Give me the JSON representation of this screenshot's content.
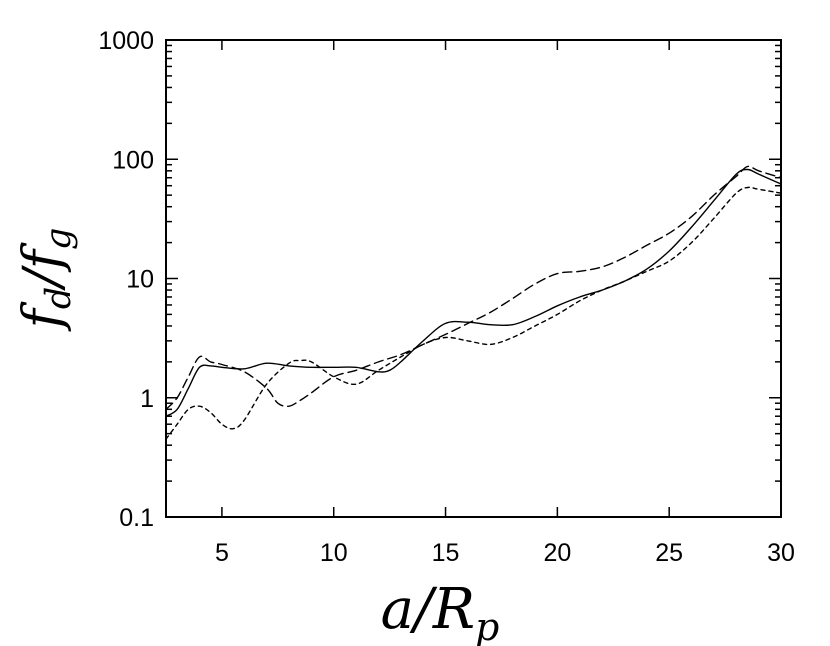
{
  "chart_data": {
    "type": "line",
    "title": "",
    "xlabel": "a/R_p",
    "ylabel": "f_d/f_g",
    "xlim": [
      2.5,
      30
    ],
    "ylim": [
      0.1,
      1000
    ],
    "yscale": "log",
    "grid": false,
    "x_ticks": [
      5,
      10,
      15,
      20,
      25,
      30
    ],
    "x_tick_labels": [
      "5",
      "10",
      "15",
      "20",
      "25",
      "30"
    ],
    "y_ticks": [
      0.1,
      1,
      10,
      100,
      1000
    ],
    "y_tick_labels": [
      "0.1",
      "1",
      "10",
      "100",
      "1000"
    ],
    "series": [
      {
        "style": "solid",
        "x": [
          2.5,
          3,
          3.5,
          4,
          4.5,
          5,
          6,
          7,
          8,
          9,
          10,
          11,
          12,
          12.5,
          13,
          14,
          15,
          16,
          17,
          18,
          19,
          20,
          21,
          22,
          23,
          24,
          25,
          26,
          27,
          28,
          28.5,
          29,
          30
        ],
        "y": [
          0.7,
          0.8,
          1.2,
          1.8,
          1.85,
          1.8,
          1.75,
          1.95,
          1.85,
          1.8,
          1.8,
          1.8,
          1.65,
          1.7,
          2.0,
          3.0,
          4.2,
          4.3,
          4.1,
          4.1,
          4.8,
          5.9,
          7.0,
          8.0,
          9.5,
          12.0,
          17.0,
          27.0,
          45.0,
          75.0,
          82.0,
          75.0,
          62.0
        ]
      },
      {
        "style": "dashed",
        "x": [
          2.5,
          3,
          3.5,
          4,
          4.5,
          5,
          6,
          7,
          7.5,
          8,
          8.5,
          9,
          10,
          11,
          12,
          13,
          14,
          15,
          16,
          17,
          18,
          19,
          20,
          21,
          22,
          23,
          24,
          25,
          26,
          27,
          28,
          28.5,
          29,
          30
        ],
        "y": [
          0.8,
          1.0,
          1.5,
          2.2,
          2.0,
          1.9,
          1.65,
          1.2,
          0.9,
          0.85,
          0.95,
          1.1,
          1.5,
          1.7,
          2.0,
          2.3,
          2.8,
          3.4,
          4.2,
          5.2,
          6.8,
          9.0,
          11.0,
          11.5,
          12.5,
          15.0,
          19.0,
          24.0,
          33.0,
          50.0,
          72.0,
          87.0,
          80.0,
          70.0
        ]
      },
      {
        "style": "dotted",
        "x": [
          2.5,
          3,
          3.5,
          4,
          4.5,
          5,
          5.5,
          6,
          7,
          8,
          8.5,
          9,
          10,
          11,
          12,
          13,
          14,
          15,
          16,
          17,
          18,
          19,
          20,
          21,
          22,
          23,
          24,
          25,
          26,
          27,
          28,
          28.5,
          29,
          30
        ],
        "y": [
          0.45,
          0.6,
          0.8,
          0.85,
          0.75,
          0.6,
          0.55,
          0.65,
          1.3,
          1.95,
          2.05,
          2.0,
          1.5,
          1.3,
          1.7,
          2.2,
          2.8,
          3.2,
          3.0,
          2.8,
          3.2,
          4.0,
          5.0,
          6.5,
          8.0,
          9.5,
          11.5,
          14.0,
          20.0,
          32.0,
          52.0,
          58.0,
          56.0,
          52.0
        ]
      }
    ]
  }
}
